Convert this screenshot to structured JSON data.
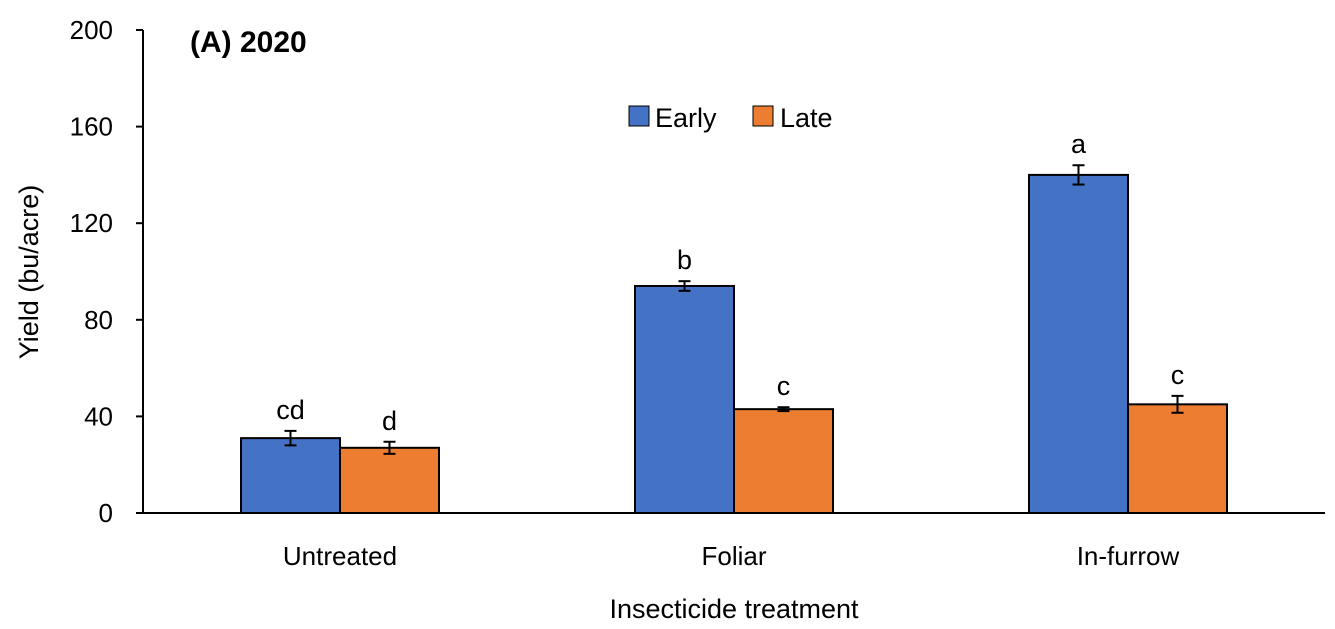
{
  "chart_data": {
    "type": "bar",
    "title": "(A) 2020",
    "xlabel": "Insecticide treatment",
    "ylabel": "Yield (bu/acre)",
    "ylim": [
      0,
      200
    ],
    "yticks": [
      0,
      40,
      80,
      120,
      160,
      200
    ],
    "categories": [
      "Untreated",
      "Foliar",
      "In-furrow"
    ],
    "series": [
      {
        "name": "Early",
        "color": "#4472C4",
        "values": [
          31,
          94,
          140
        ],
        "errors": [
          3,
          2,
          4
        ],
        "labels": [
          "cd",
          "b",
          "a"
        ]
      },
      {
        "name": "Late",
        "color": "#ED7D31",
        "values": [
          27,
          43,
          45
        ],
        "errors": [
          2.5,
          0.8,
          3.5
        ],
        "labels": [
          "d",
          "c",
          "c"
        ]
      }
    ],
    "legend_position": "top-center",
    "grid": false
  }
}
